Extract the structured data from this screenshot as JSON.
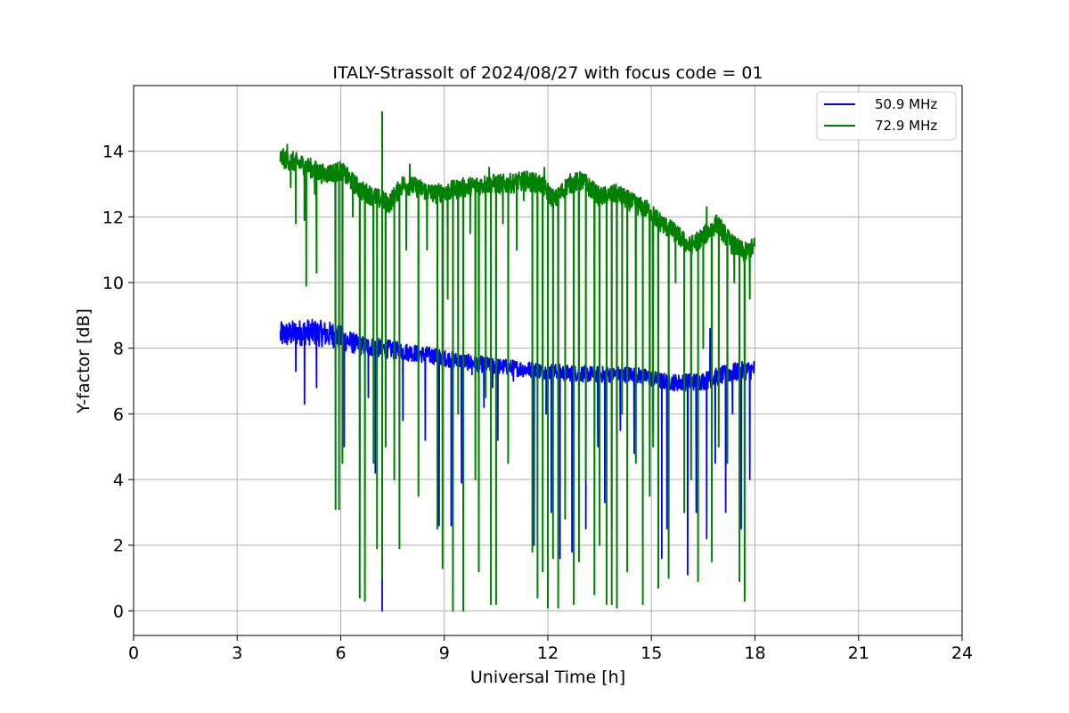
{
  "chart_data": {
    "type": "line",
    "title": "ITALY-Strassolt of 2024/08/27 with focus code = 01",
    "xlabel": "Universal Time [h]",
    "ylabel": "Y-factor [dB]",
    "xlim": [
      0,
      24
    ],
    "ylim": [
      -0.75,
      16
    ],
    "xticks": [
      0,
      3,
      6,
      9,
      12,
      15,
      18,
      21,
      24
    ],
    "yticks": [
      0,
      2,
      4,
      6,
      8,
      10,
      12,
      14
    ],
    "grid": true,
    "legend_position": "top-right",
    "series": [
      {
        "name": "50.9 MHz",
        "color": "#0000ff",
        "baseline": [
          [
            4.25,
            8.4
          ],
          [
            5.0,
            8.5
          ],
          [
            5.8,
            8.4
          ],
          [
            6.5,
            8.1
          ],
          [
            7.5,
            7.95
          ],
          [
            8.5,
            7.8
          ],
          [
            9.5,
            7.6
          ],
          [
            10.5,
            7.45
          ],
          [
            11.5,
            7.35
          ],
          [
            12.5,
            7.25
          ],
          [
            13.5,
            7.2
          ],
          [
            14.5,
            7.2
          ],
          [
            15.3,
            7.0
          ],
          [
            15.8,
            6.95
          ],
          [
            16.5,
            7.0
          ],
          [
            17.3,
            7.25
          ],
          [
            18.0,
            7.35
          ]
        ],
        "spread": [
          [
            4.25,
            0.8
          ],
          [
            5.8,
            0.8
          ],
          [
            6.5,
            0.6
          ],
          [
            9.0,
            0.5
          ],
          [
            15.0,
            0.5
          ],
          [
            18.0,
            0.6
          ]
        ],
        "dips": [
          [
            4.7,
            7.3
          ],
          [
            4.95,
            6.3
          ],
          [
            5.3,
            6.8
          ],
          [
            6.1,
            5.0
          ],
          [
            6.35,
            7.9
          ],
          [
            6.55,
            4.0
          ],
          [
            6.8,
            6.5
          ],
          [
            7.0,
            4.2
          ],
          [
            7.2,
            0.0
          ],
          [
            7.7,
            3.9
          ],
          [
            7.8,
            5.8
          ],
          [
            8.45,
            5.2
          ],
          [
            8.85,
            2.6
          ],
          [
            9.2,
            2.6
          ],
          [
            9.5,
            3.9
          ],
          [
            9.8,
            7.2
          ],
          [
            10.15,
            6.2
          ],
          [
            10.4,
            6.8
          ],
          [
            10.55,
            5.2
          ],
          [
            11.0,
            7.0
          ],
          [
            11.6,
            2.0
          ],
          [
            11.95,
            6.0
          ],
          [
            12.1,
            3.0
          ],
          [
            12.35,
            1.6
          ],
          [
            12.7,
            1.8
          ],
          [
            13.1,
            2.5
          ],
          [
            13.45,
            5.0
          ],
          [
            13.65,
            3.3
          ],
          [
            13.85,
            2.5
          ],
          [
            14.1,
            5.5
          ],
          [
            14.5,
            4.8
          ],
          [
            14.75,
            2.0
          ],
          [
            15.05,
            5.5
          ],
          [
            15.3,
            1.6
          ],
          [
            15.45,
            2.5
          ],
          [
            16.05,
            1.1
          ],
          [
            16.3,
            3.0
          ],
          [
            16.6,
            2.2
          ],
          [
            16.85,
            4.5
          ],
          [
            17.15,
            3.0
          ],
          [
            17.35,
            6.0
          ],
          [
            17.6,
            2.5
          ],
          [
            17.85,
            4.0
          ]
        ],
        "spikes": [
          [
            16.7,
            8.6
          ],
          [
            17.2,
            9.1
          ]
        ]
      },
      {
        "name": "72.9 MHz",
        "color": "#008000",
        "baseline": [
          [
            4.25,
            13.8
          ],
          [
            4.9,
            13.6
          ],
          [
            5.5,
            13.3
          ],
          [
            6.0,
            13.4
          ],
          [
            6.3,
            13.1
          ],
          [
            6.6,
            12.8
          ],
          [
            7.0,
            12.6
          ],
          [
            7.4,
            12.4
          ],
          [
            7.8,
            13.0
          ],
          [
            8.2,
            12.9
          ],
          [
            8.7,
            12.7
          ],
          [
            9.2,
            12.8
          ],
          [
            9.6,
            12.9
          ],
          [
            10.2,
            13.0
          ],
          [
            10.8,
            13.0
          ],
          [
            11.4,
            13.1
          ],
          [
            11.8,
            13.0
          ],
          [
            12.2,
            12.5
          ],
          [
            12.6,
            13.0
          ],
          [
            13.0,
            13.1
          ],
          [
            13.5,
            12.6
          ],
          [
            14.0,
            12.7
          ],
          [
            14.5,
            12.4
          ],
          [
            14.9,
            12.2
          ],
          [
            15.3,
            11.8
          ],
          [
            15.7,
            11.5
          ],
          [
            16.1,
            11.1
          ],
          [
            16.5,
            11.4
          ],
          [
            16.9,
            11.8
          ],
          [
            17.3,
            11.2
          ],
          [
            17.7,
            10.9
          ],
          [
            18.0,
            11.1
          ]
        ],
        "spread": [
          [
            4.25,
            0.6
          ],
          [
            18.0,
            0.6
          ]
        ],
        "dips": [
          [
            4.55,
            12.9
          ],
          [
            4.7,
            11.8
          ],
          [
            4.95,
            11.9
          ],
          [
            5.0,
            9.9
          ],
          [
            5.25,
            12.7
          ],
          [
            5.3,
            10.3
          ],
          [
            5.75,
            13.1
          ],
          [
            5.85,
            3.1
          ],
          [
            5.95,
            3.1
          ],
          [
            6.05,
            4.5
          ],
          [
            6.35,
            12.0
          ],
          [
            6.55,
            0.4
          ],
          [
            6.7,
            0.3
          ],
          [
            6.95,
            4.5
          ],
          [
            7.05,
            1.9
          ],
          [
            7.2,
            1.0
          ],
          [
            7.3,
            5.0
          ],
          [
            7.55,
            4.0
          ],
          [
            7.7,
            1.9
          ],
          [
            7.9,
            11.0
          ],
          [
            8.25,
            3.5
          ],
          [
            8.5,
            11.0
          ],
          [
            8.8,
            2.5
          ],
          [
            8.95,
            1.3
          ],
          [
            9.1,
            9.5
          ],
          [
            9.25,
            0.0
          ],
          [
            9.4,
            6.0
          ],
          [
            9.55,
            0.0
          ],
          [
            9.75,
            11.5
          ],
          [
            9.9,
            4.0
          ],
          [
            10.0,
            1.2
          ],
          [
            10.2,
            6.5
          ],
          [
            10.35,
            0.2
          ],
          [
            10.5,
            0.2
          ],
          [
            10.7,
            11.8
          ],
          [
            10.85,
            4.5
          ],
          [
            11.1,
            11.0
          ],
          [
            11.3,
            12.5
          ],
          [
            11.55,
            1.8
          ],
          [
            11.7,
            0.4
          ],
          [
            11.85,
            1.2
          ],
          [
            12.0,
            0.1
          ],
          [
            12.15,
            1.6
          ],
          [
            12.3,
            0.1
          ],
          [
            12.5,
            2.8
          ],
          [
            12.75,
            0.2
          ],
          [
            12.9,
            1.5
          ],
          [
            13.1,
            4.0
          ],
          [
            13.35,
            0.5
          ],
          [
            13.5,
            2.0
          ],
          [
            13.7,
            0.2
          ],
          [
            13.85,
            0.2
          ],
          [
            14.0,
            0.1
          ],
          [
            14.15,
            6.0
          ],
          [
            14.3,
            1.2
          ],
          [
            14.55,
            4.5
          ],
          [
            14.75,
            0.2
          ],
          [
            14.95,
            3.5
          ],
          [
            15.05,
            5.0
          ],
          [
            15.2,
            0.7
          ],
          [
            15.5,
            1.0
          ],
          [
            15.7,
            10.0
          ],
          [
            15.95,
            3.0
          ],
          [
            16.15,
            4.0
          ],
          [
            16.35,
            0.9
          ],
          [
            16.5,
            8.0
          ],
          [
            16.75,
            1.5
          ],
          [
            16.95,
            5.0
          ],
          [
            17.2,
            4.5
          ],
          [
            17.4,
            10.0
          ],
          [
            17.55,
            0.9
          ],
          [
            17.7,
            0.3
          ],
          [
            17.85,
            9.5
          ]
        ],
        "spikes": [
          [
            4.45,
            14.2
          ],
          [
            7.2,
            15.2
          ],
          [
            8.0,
            13.6
          ],
          [
            10.3,
            13.5
          ],
          [
            11.9,
            13.5
          ],
          [
            16.6,
            12.3
          ]
        ]
      }
    ]
  }
}
